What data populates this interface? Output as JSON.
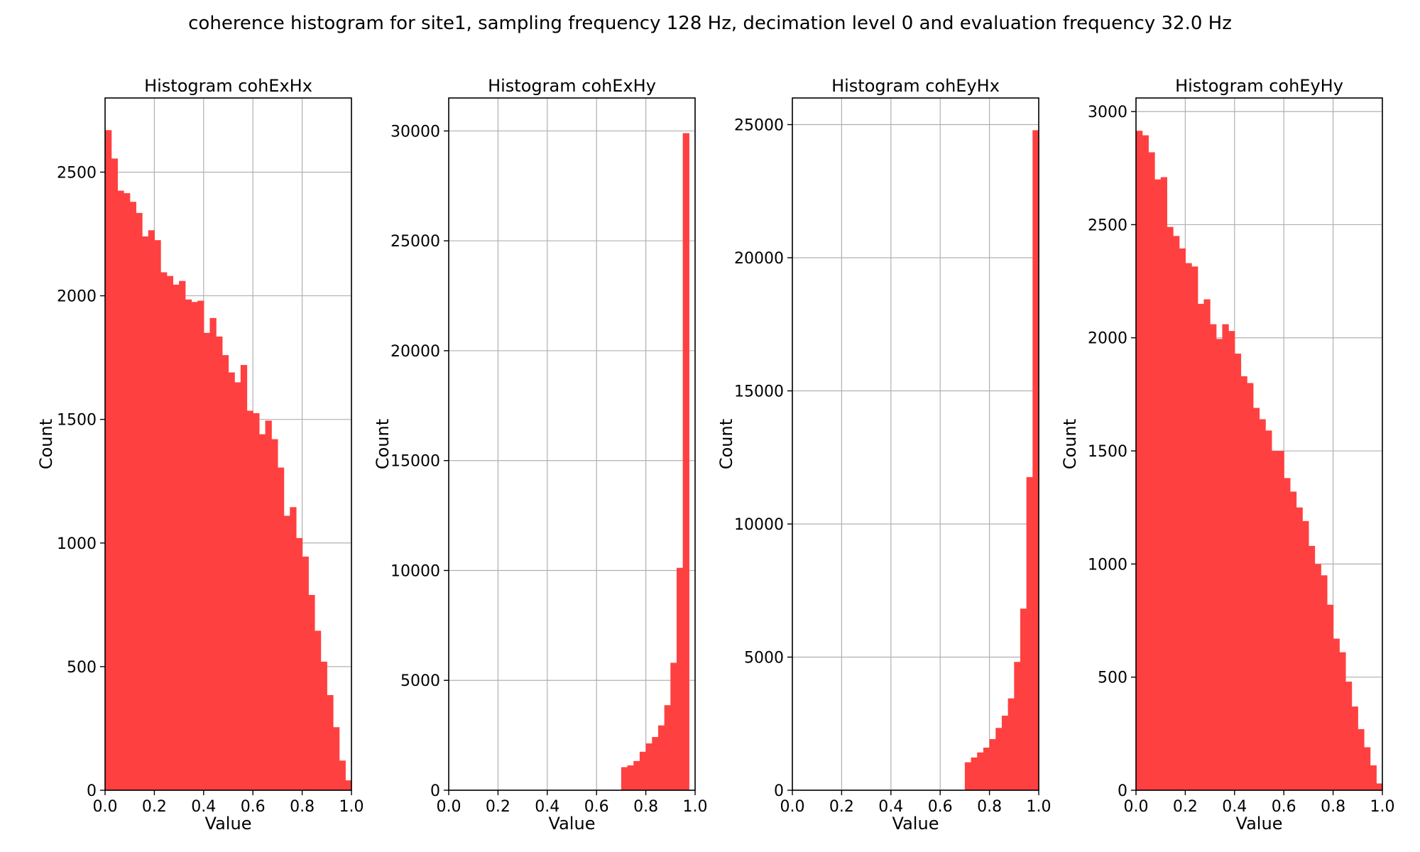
{
  "figure": {
    "suptitle": "coherence histogram for site1, sampling frequency 128 Hz, decimation level 0 and evaluation frequency 32.0 Hz"
  },
  "chart_data": [
    {
      "type": "bar",
      "title": "Histogram cohExHx",
      "xlabel": "Value",
      "ylabel": "Count",
      "xlim": [
        0,
        1
      ],
      "ylim": [
        0,
        2800
      ],
      "xticks": [
        "0.0",
        "0.2",
        "0.4",
        "0.6",
        "0.8",
        "1.0"
      ],
      "yticks": [
        "0",
        "500",
        "1000",
        "1500",
        "2000",
        "2500"
      ],
      "grid": true,
      "bar_color": "#ff4040",
      "bin_edges_start": 0.0,
      "bin_width": 0.025,
      "values": [
        2670,
        2555,
        2425,
        2415,
        2380,
        2335,
        2240,
        2265,
        2225,
        2095,
        2080,
        2045,
        2060,
        1985,
        1975,
        1980,
        1850,
        1910,
        1835,
        1760,
        1690,
        1650,
        1720,
        1535,
        1525,
        1440,
        1495,
        1420,
        1305,
        1110,
        1145,
        1020,
        945,
        790,
        645,
        520,
        385,
        255,
        120,
        40
      ]
    },
    {
      "type": "bar",
      "title": "Histogram cohExHy",
      "xlabel": "Value",
      "ylabel": "Count",
      "xlim": [
        0,
        1
      ],
      "ylim": [
        0,
        31500
      ],
      "xticks": [
        "0.0",
        "0.2",
        "0.4",
        "0.6",
        "0.8",
        "1.0"
      ],
      "yticks": [
        "0",
        "5000",
        "10000",
        "15000",
        "20000",
        "25000",
        "30000"
      ],
      "grid": true,
      "bar_color": "#ff4040",
      "bin_edges_start": 0.7,
      "bin_width": 0.025,
      "values": [
        1050,
        1130,
        1330,
        1750,
        2130,
        2420,
        2950,
        3870,
        5800,
        10120,
        29900
      ]
    },
    {
      "type": "bar",
      "title": "Histogram cohEyHx",
      "xlabel": "Value",
      "ylabel": "Count",
      "xlim": [
        0,
        1
      ],
      "ylim": [
        0,
        26000
      ],
      "xticks": [
        "0.0",
        "0.2",
        "0.4",
        "0.6",
        "0.8",
        "1.0"
      ],
      "yticks": [
        "0",
        "5000",
        "10000",
        "15000",
        "20000",
        "25000"
      ],
      "grid": true,
      "bar_color": "#ff4040",
      "bin_edges_start": 0.7,
      "bin_width": 0.025,
      "values": [
        1050,
        1230,
        1420,
        1600,
        1920,
        2340,
        2800,
        3450,
        4820,
        6820,
        11760,
        24790
      ]
    },
    {
      "type": "bar",
      "title": "Histogram cohEyHy",
      "xlabel": "Value",
      "ylabel": "Count",
      "xlim": [
        0,
        1
      ],
      "ylim": [
        0,
        3060
      ],
      "xticks": [
        "0.0",
        "0.2",
        "0.4",
        "0.6",
        "0.8",
        "1.0"
      ],
      "yticks": [
        "0",
        "500",
        "1000",
        "1500",
        "2000",
        "2500",
        "3000"
      ],
      "grid": true,
      "bar_color": "#ff4040",
      "bin_edges_start": 0.0,
      "bin_width": 0.025,
      "values": [
        2915,
        2895,
        2820,
        2700,
        2710,
        2490,
        2450,
        2395,
        2330,
        2315,
        2150,
        2170,
        2060,
        1995,
        2060,
        2030,
        1930,
        1830,
        1800,
        1690,
        1640,
        1590,
        1500,
        1500,
        1380,
        1320,
        1250,
        1190,
        1080,
        1000,
        950,
        820,
        670,
        610,
        480,
        370,
        270,
        190,
        110,
        30
      ]
    }
  ]
}
